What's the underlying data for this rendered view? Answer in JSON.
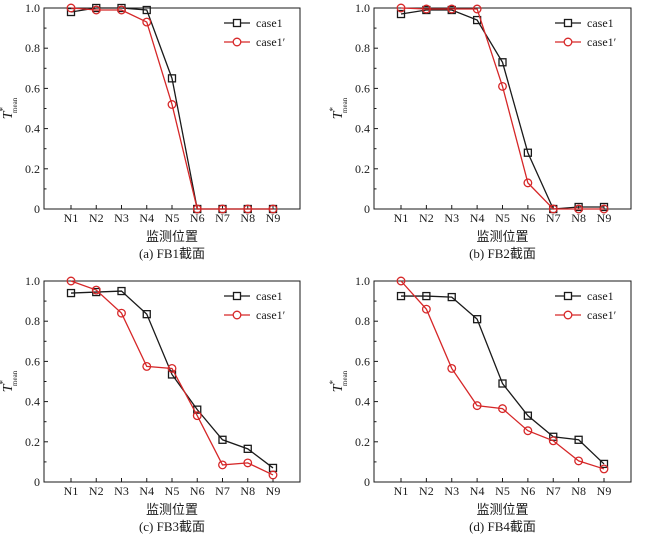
{
  "chart_data": [
    {
      "type": "line",
      "caption": "(a) FB1截面",
      "xlabel": "监测位置",
      "ylabel": {
        "main": "T",
        "sup": "*",
        "sub": "mean"
      },
      "categories": [
        "N1",
        "N2",
        "N3",
        "N4",
        "N5",
        "N6",
        "N7",
        "N8",
        "N9"
      ],
      "ylim": [
        0,
        1.0
      ],
      "yticks": [
        "0",
        "0.2",
        "0.4",
        "0.6",
        "0.8",
        "1.0"
      ],
      "legend_position": "top-right",
      "series": [
        {
          "name": "case1",
          "color": "#1a1a1a",
          "marker": "square",
          "values": [
            0.98,
            1.0,
            1.0,
            0.99,
            0.65,
            0.0,
            0.0,
            0.0,
            0.0
          ]
        },
        {
          "name": "case1′",
          "color": "#d62728",
          "marker": "circle",
          "values": [
            1.0,
            0.99,
            0.99,
            0.93,
            0.52,
            0.0,
            0.0,
            0.0,
            0.0
          ]
        }
      ]
    },
    {
      "type": "line",
      "caption": "(b) FB2截面",
      "xlabel": "监测位置",
      "ylabel": {
        "main": "T",
        "sup": "*",
        "sub": "mean"
      },
      "categories": [
        "N1",
        "N2",
        "N3",
        "N4",
        "N5",
        "N6",
        "N7",
        "N8",
        "N9"
      ],
      "ylim": [
        0,
        1.0
      ],
      "yticks": [
        "0",
        "0.2",
        "0.4",
        "0.6",
        "0.8",
        "1.0"
      ],
      "legend_position": "top-right",
      "series": [
        {
          "name": "case1",
          "color": "#1a1a1a",
          "marker": "square",
          "values": [
            0.97,
            0.99,
            0.99,
            0.94,
            0.73,
            0.28,
            0.0,
            0.01,
            0.01
          ]
        },
        {
          "name": "case1′",
          "color": "#d62728",
          "marker": "circle",
          "values": [
            1.0,
            0.995,
            0.995,
            0.995,
            0.61,
            0.13,
            0.0,
            0.0,
            0.0
          ]
        }
      ]
    },
    {
      "type": "line",
      "caption": "(c) FB3截面",
      "xlabel": "监测位置",
      "ylabel": {
        "main": "T",
        "sup": "*",
        "sub": "mean"
      },
      "categories": [
        "N1",
        "N2",
        "N3",
        "N4",
        "N5",
        "N6",
        "N7",
        "N8",
        "N9"
      ],
      "ylim": [
        0,
        1.0
      ],
      "yticks": [
        "0",
        "0.2",
        "0.4",
        "0.6",
        "0.8",
        "1.0"
      ],
      "legend_position": "top-right",
      "series": [
        {
          "name": "case1",
          "color": "#1a1a1a",
          "marker": "square",
          "values": [
            0.94,
            0.945,
            0.95,
            0.835,
            0.535,
            0.36,
            0.21,
            0.165,
            0.07
          ]
        },
        {
          "name": "case1′",
          "color": "#d62728",
          "marker": "circle",
          "values": [
            1.0,
            0.955,
            0.84,
            0.575,
            0.565,
            0.33,
            0.085,
            0.095,
            0.035
          ]
        }
      ]
    },
    {
      "type": "line",
      "caption": "(d) FB4截面",
      "xlabel": "监测位置",
      "ylabel": {
        "main": "T",
        "sup": "*",
        "sub": "mean"
      },
      "categories": [
        "N1",
        "N2",
        "N3",
        "N4",
        "N5",
        "N6",
        "N7",
        "N8",
        "N9"
      ],
      "ylim": [
        0,
        1.0
      ],
      "yticks": [
        "0",
        "0.2",
        "0.4",
        "0.6",
        "0.8",
        "1.0"
      ],
      "legend_position": "top-right",
      "series": [
        {
          "name": "case1",
          "color": "#1a1a1a",
          "marker": "square",
          "values": [
            0.925,
            0.925,
            0.92,
            0.81,
            0.49,
            0.33,
            0.225,
            0.21,
            0.09
          ]
        },
        {
          "name": "case1′",
          "color": "#d62728",
          "marker": "circle",
          "values": [
            1.0,
            0.86,
            0.565,
            0.38,
            0.365,
            0.255,
            0.205,
            0.105,
            0.065
          ]
        }
      ]
    }
  ]
}
